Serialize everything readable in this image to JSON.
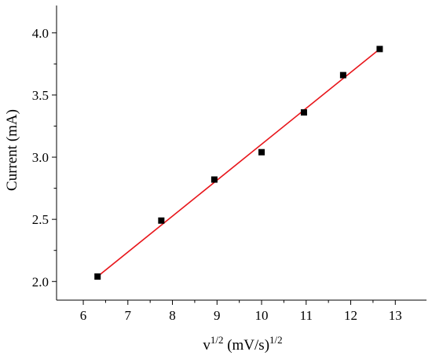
{
  "chart_data": {
    "type": "scatter",
    "title": "",
    "xlabel": {
      "base": "v",
      "sup1": "1/2",
      "mid": " (mV/s)",
      "sup2": "1/2"
    },
    "ylabel": "Current (mA)",
    "xlim": [
      5.4,
      13.7
    ],
    "ylim": [
      1.85,
      4.22
    ],
    "x_ticks": [
      "6",
      "7",
      "8",
      "9",
      "10",
      "11",
      "12",
      "13"
    ],
    "y_ticks": [
      "2.0",
      "2.5",
      "3.0",
      "3.5",
      "4.0"
    ],
    "grid": false,
    "series": [
      {
        "color": "#000000",
        "marker": "square",
        "x": [
          6.32,
          7.75,
          8.94,
          10.0,
          10.95,
          11.83,
          12.65
        ],
        "y": [
          2.04,
          2.49,
          2.82,
          3.04,
          3.36,
          3.66,
          3.87
        ]
      }
    ],
    "fit_line": {
      "color": "#e8161b",
      "x": [
        6.32,
        12.65
      ],
      "y": [
        2.04,
        3.87
      ]
    }
  }
}
